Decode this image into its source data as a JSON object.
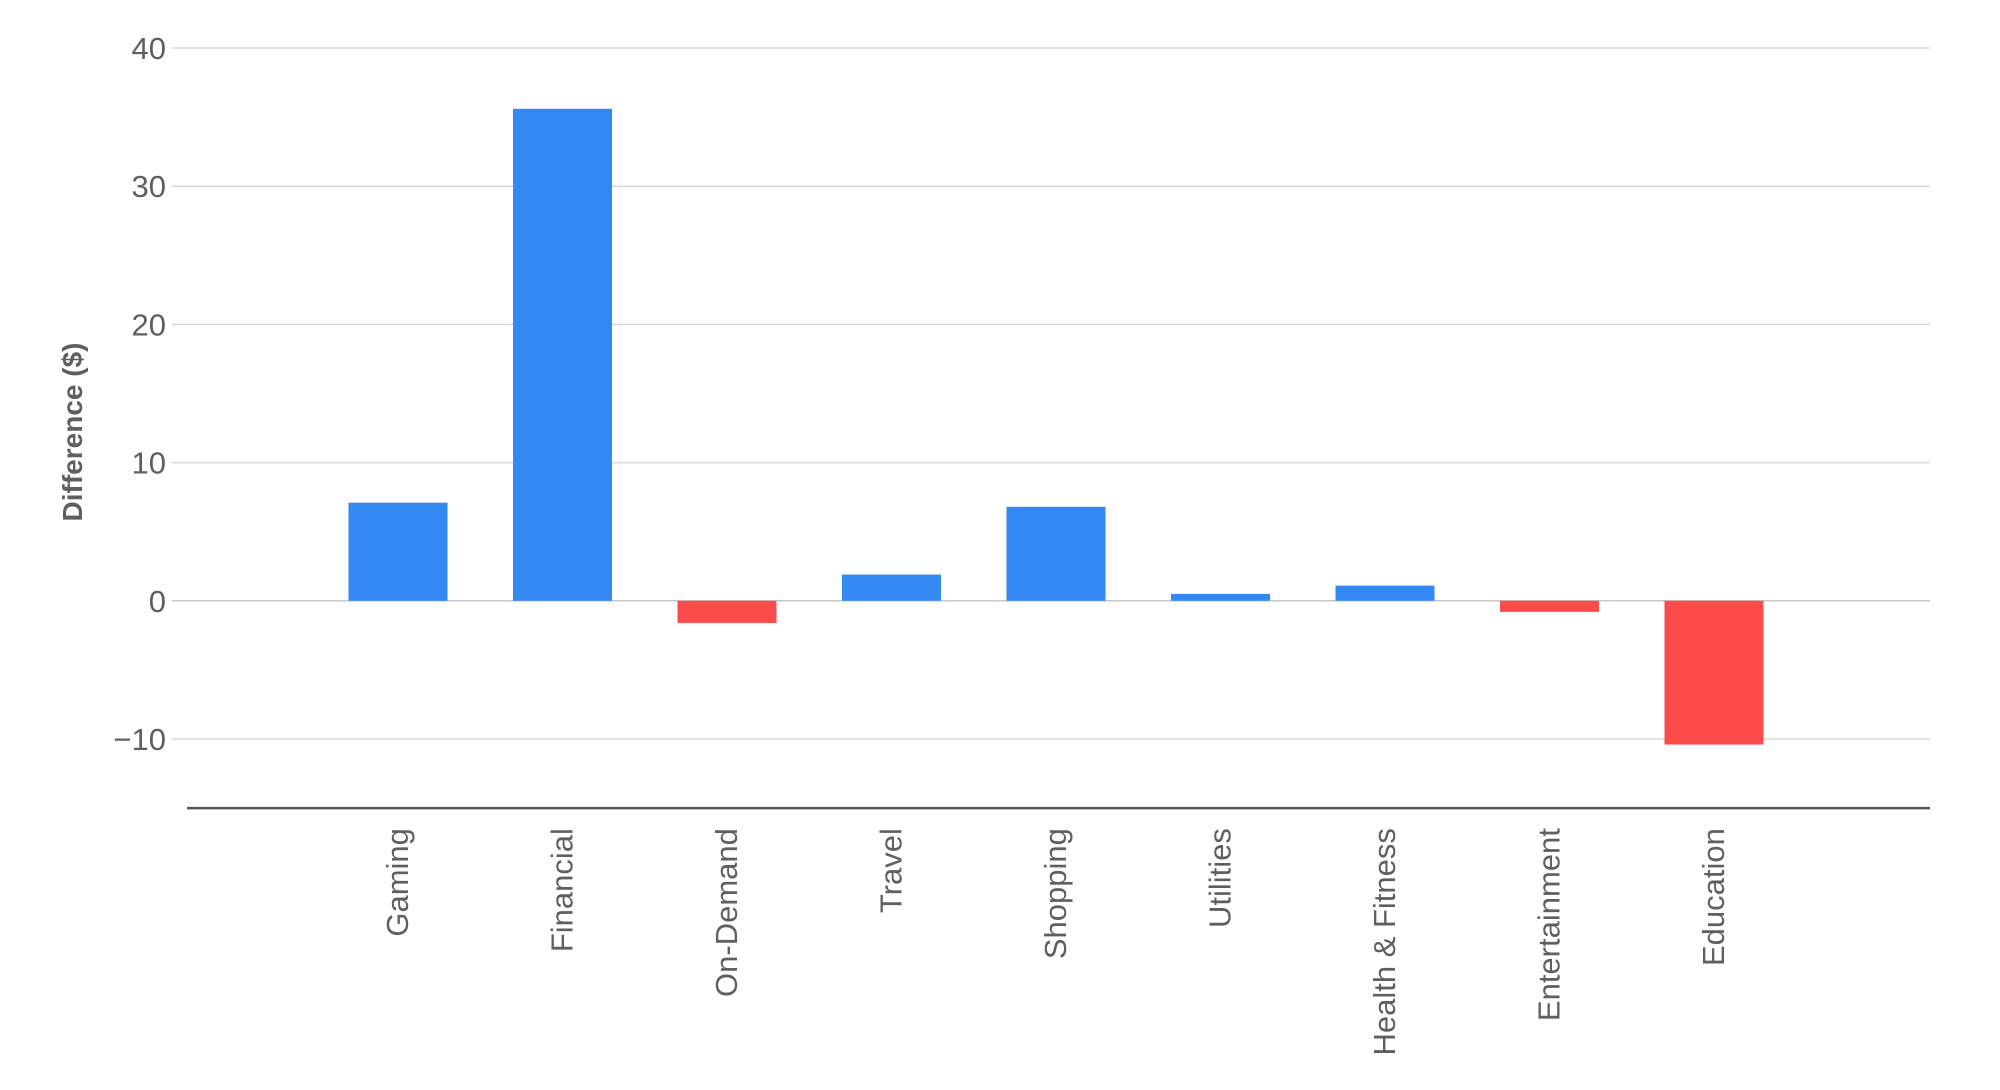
{
  "chart_data": {
    "type": "bar",
    "title": "",
    "xlabel": "",
    "ylabel": "Difference ($)",
    "categories": [
      "Gaming",
      "Financial",
      "On-Demand",
      "Travel",
      "Shopping",
      "Utilities",
      "Health & Fitness",
      "Entertainment",
      "Education"
    ],
    "values": [
      7.1,
      35.6,
      -1.6,
      1.9,
      6.8,
      0.5,
      1.1,
      -0.8,
      -10.4
    ],
    "yticks": [
      40,
      30,
      20,
      10,
      0,
      -10
    ],
    "ytick_labels": [
      "40",
      "30",
      "20",
      "10",
      "0",
      "−10"
    ],
    "ylim": [
      -15,
      40
    ],
    "grid": true,
    "legend": "none",
    "colors": {
      "positive": "#3488f2",
      "negative": "#fb4b4b"
    }
  }
}
